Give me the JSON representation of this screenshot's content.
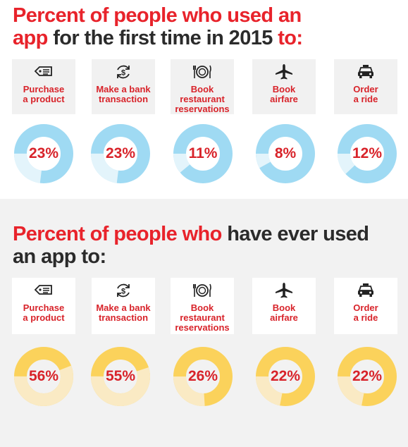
{
  "section_first_time": {
    "title_red_1": "Percent of people who used an",
    "title_red_2": "app",
    "title_dark_2": "for  the first time in 2015",
    "title_red_3": "to:",
    "colors": {
      "ring": "#9fdaf3",
      "light": "#e3f4fb"
    }
  },
  "section_ever": {
    "title_red_1": "Percent of people who",
    "title_dark_1": "have ever used",
    "title_dark_2": "an app to:",
    "colors": {
      "ring": "#fbd25b",
      "light": "#faeac4"
    }
  },
  "categories": [
    {
      "label_line1": "Purchase",
      "label_line2": "a product",
      "label_line3": "",
      "icon": "price-tag-icon"
    },
    {
      "label_line1": "Make a bank",
      "label_line2": "transaction",
      "label_line3": "",
      "icon": "dollar-refresh-icon"
    },
    {
      "label_line1": "Book",
      "label_line2": "restaurant",
      "label_line3": "reservations",
      "icon": "plate-utensils-icon"
    },
    {
      "label_line1": "Book",
      "label_line2": "airfare",
      "label_line3": "",
      "icon": "airplane-icon"
    },
    {
      "label_line1": "Order",
      "label_line2": "a ride",
      "label_line3": "",
      "icon": "car-icon"
    }
  ],
  "chart_data": [
    {
      "type": "pie",
      "title": "Percent of people who used an app for the first time in 2015 to:",
      "categories": [
        "Purchase a product",
        "Make a bank transaction",
        "Book restaurant reservations",
        "Book airfare",
        "Order a ride"
      ],
      "values": [
        23,
        23,
        11,
        8,
        12
      ],
      "labels": [
        "23%",
        "23%",
        "11%",
        "8%",
        "12%"
      ]
    },
    {
      "type": "pie",
      "title": "Percent of people who have ever used an app to:",
      "categories": [
        "Purchase a product",
        "Make a bank transaction",
        "Book restaurant reservations",
        "Book airfare",
        "Order a ride"
      ],
      "values": [
        56,
        55,
        26,
        22,
        22
      ],
      "labels": [
        "56%",
        "55%",
        "26%",
        "22%",
        "22%"
      ]
    }
  ]
}
